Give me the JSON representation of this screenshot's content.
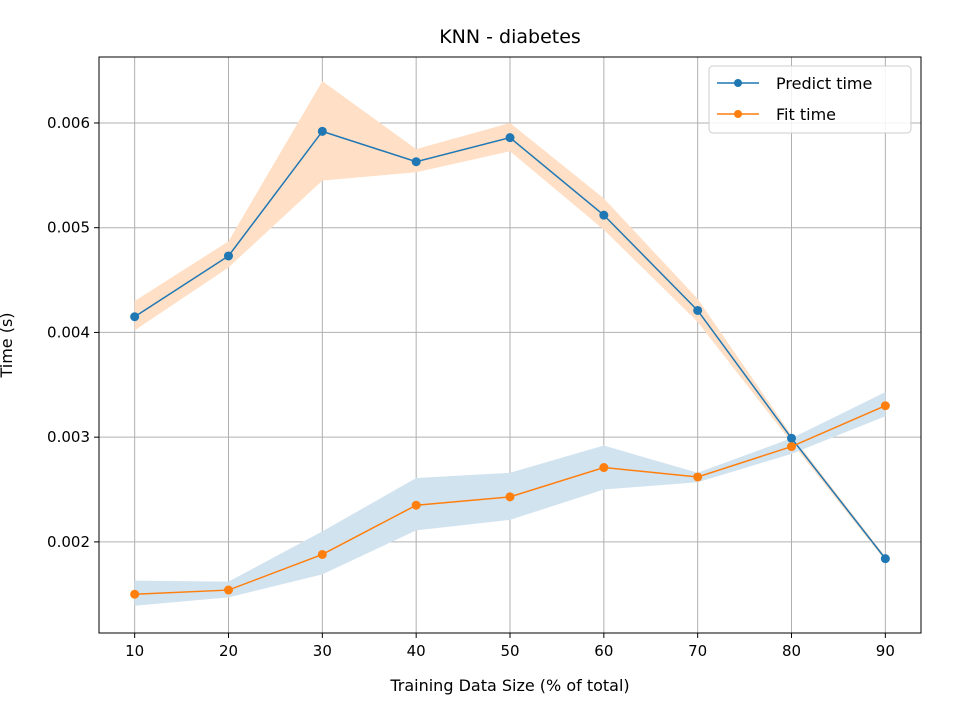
{
  "chart_data": {
    "type": "line",
    "title": "KNN - diabetes",
    "xlabel": "Training Data Size (% of total)",
    "ylabel": "Time (s)",
    "x": [
      10,
      20,
      30,
      40,
      50,
      60,
      70,
      80,
      90
    ],
    "xlim": [
      6.2,
      93.8
    ],
    "ylim": [
      0.00113,
      0.00663
    ],
    "xticks": [
      "10",
      "20",
      "30",
      "40",
      "50",
      "60",
      "70",
      "80",
      "90"
    ],
    "yticks": [
      "0.002",
      "0.003",
      "0.004",
      "0.005",
      "0.006"
    ],
    "ytick_values": [
      0.002,
      0.003,
      0.004,
      0.005,
      0.006
    ],
    "grid": true,
    "legend_position": "top-right",
    "series": [
      {
        "name": "Predict time",
        "color": "#1f77b4",
        "band_color": "#ffdfc5",
        "values": [
          0.00415,
          0.00473,
          0.00592,
          0.00563,
          0.00586,
          0.00512,
          0.00421,
          0.00299,
          0.00184
        ],
        "band_upper": [
          0.0043,
          0.00487,
          0.0064,
          0.00575,
          0.006,
          0.00528,
          0.00432,
          0.00302,
          0.00186
        ],
        "band_lower": [
          0.00402,
          0.00462,
          0.00545,
          0.00553,
          0.00573,
          0.00498,
          0.0041,
          0.00295,
          0.00182
        ]
      },
      {
        "name": "Fit time",
        "color": "#ff7f0e",
        "band_color": "#d2e3f0",
        "values": [
          0.0015,
          0.00154,
          0.00188,
          0.00235,
          0.00243,
          0.00271,
          0.00262,
          0.00291,
          0.0033
        ],
        "band_upper": [
          0.00163,
          0.00162,
          0.0021,
          0.00261,
          0.00266,
          0.00292,
          0.00266,
          0.00299,
          0.00343
        ],
        "band_lower": [
          0.00139,
          0.00147,
          0.00169,
          0.00211,
          0.00221,
          0.0025,
          0.00257,
          0.00284,
          0.0032
        ]
      }
    ]
  }
}
